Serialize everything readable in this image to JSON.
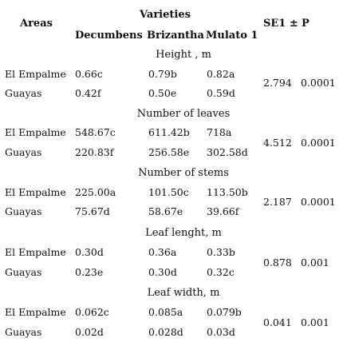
{
  "headers": {
    "areas": "Areas",
    "varieties": "Varieties",
    "decumbens": "Decumbens",
    "brizantha": "Brizantha",
    "mulato": "Mulato 1",
    "se": "SE1 ±",
    "p": "P"
  },
  "sections": [
    {
      "title": "Height , m",
      "rows": [
        {
          "area": "El Empalme",
          "decumbens": "0.66c",
          "brizantha": "0.79b",
          "mulato": "0.82a"
        },
        {
          "area": "Guayas",
          "decumbens": "0.42f",
          "brizantha": "0.50e",
          "mulato": "0.59d"
        }
      ],
      "se": "2.794",
      "p": "0.0001"
    },
    {
      "title": "Number of leaves",
      "rows": [
        {
          "area": "El Empalme",
          "decumbens": "548.67c",
          "brizantha": "611.42b",
          "mulato": "718a"
        },
        {
          "area": "Guayas",
          "decumbens": "220.83f",
          "brizantha": "256.58e",
          "mulato": "302.58d"
        }
      ],
      "se": "4.512",
      "p": "0.0001"
    },
    {
      "title": "Number of stems",
      "rows": [
        {
          "area": "El Empalme",
          "decumbens": "225.00a",
          "brizantha": "101.50c",
          "mulato": "113.50b"
        },
        {
          "area": "Guayas",
          "decumbens": "75.67d",
          "brizantha": "58.67e",
          "mulato": "39.66f"
        }
      ],
      "se": "2.187",
      "p": "0.0001"
    },
    {
      "title": "Leaf lenght, m",
      "rows": [
        {
          "area": "El Empalme",
          "decumbens": "0.30d",
          "brizantha": "0.36a",
          "mulato": "0.33b"
        },
        {
          "area": "Guayas",
          "decumbens": "0.23e",
          "brizantha": "0.30d",
          "mulato": "0.32c"
        }
      ],
      "se": "0.878",
      "p": "0.001"
    },
    {
      "title": "Leaf width, m",
      "rows": [
        {
          "area": "El Empalme",
          "decumbens": "0.062c",
          "brizantha": "0.085a",
          "mulato": "0.079b"
        },
        {
          "area": "Guayas",
          "decumbens": "0.02d",
          "brizantha": "0.028d",
          "mulato": "0.03d"
        }
      ],
      "se": "0.041",
      "p": "0.001"
    }
  ]
}
